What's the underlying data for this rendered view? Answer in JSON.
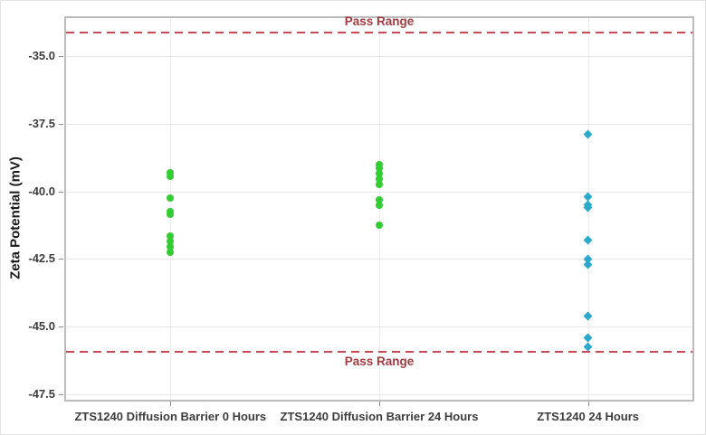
{
  "chart_data": {
    "type": "scatter",
    "title": "",
    "xlabel": "",
    "ylabel": "Zeta Potential (mV)",
    "ylim": [
      -47.7,
      -33.6
    ],
    "grid": true,
    "legend": "none",
    "yticks": [
      -35.0,
      -37.5,
      -40.0,
      -42.5,
      -45.0,
      -47.5
    ],
    "ytick_labels": [
      "-35.0",
      "-37.5",
      "-40.0",
      "-42.5",
      "-45.0",
      "-47.5"
    ],
    "categories": [
      "ZTS1240 Diffusion Barrier 0 Hours",
      "ZTS1240 Diffusion Barrier 24 Hours",
      "ZTS1240 24 Hours"
    ],
    "series": [
      {
        "name": "ZTS1240 Diffusion Barrier 0 Hours",
        "category_index": 0,
        "marker": "circle",
        "color": "#33cc33",
        "values": [
          -39.3,
          -39.45,
          -40.25,
          -40.75,
          -40.85,
          -41.65,
          -41.85,
          -42.05,
          -42.25
        ]
      },
      {
        "name": "ZTS1240 Diffusion Barrier 24 Hours",
        "category_index": 1,
        "marker": "circle",
        "color": "#33cc33",
        "values": [
          -39.0,
          -39.15,
          -39.35,
          -39.55,
          -39.75,
          -40.3,
          -40.5,
          -41.25
        ]
      },
      {
        "name": "ZTS1240 24 Hours",
        "category_index": 2,
        "marker": "diamond",
        "color": "#2ba9cb",
        "values": [
          -37.9,
          -40.2,
          -40.5,
          -40.6,
          -41.8,
          -42.5,
          -42.7,
          -44.6,
          -45.4,
          -45.75
        ]
      }
    ],
    "reference_lines": [
      {
        "value": -34.1,
        "label": "Pass Range",
        "label_position": "above",
        "style": "dashed",
        "color": "#c94a57",
        "label_color": "#a53a3e"
      },
      {
        "value": -45.9,
        "label": "Pass Range",
        "label_position": "below",
        "style": "dashed",
        "color": "#c94a57",
        "label_color": "#a53a3e"
      }
    ],
    "colors": {
      "grid": "#e8e8e8",
      "plot_border": "#bcbcbc",
      "tick_text": "#3d3d3d",
      "green_marker": "#33cc33",
      "blue_marker": "#2ba9cb",
      "pass_line": "#c94a57",
      "pass_text": "#a53a3e"
    }
  }
}
